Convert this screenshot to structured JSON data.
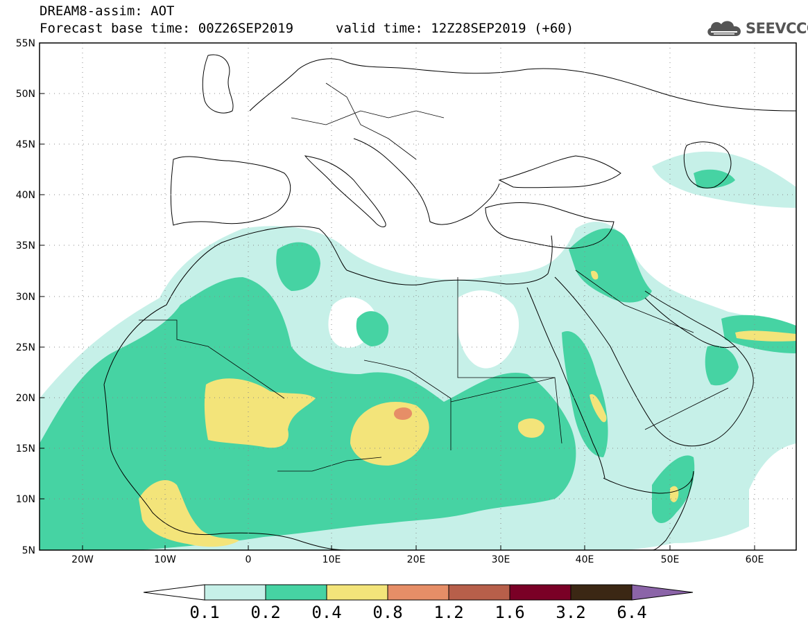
{
  "title": {
    "line1": "DREAM8-assim: AOT",
    "line2": "Forecast base time: 00Z26SEP2019",
    "line3": "valid time: 12Z28SEP2019 (+60)"
  },
  "logo": {
    "text": "SEEVCCC",
    "icon": "cloud-icon"
  },
  "map": {
    "lon_range": [
      -25,
      65
    ],
    "lat_range": [
      5,
      55
    ],
    "lat_ticks": [
      "5N",
      "10N",
      "15N",
      "20N",
      "25N",
      "30N",
      "35N",
      "40N",
      "45N",
      "50N",
      "55N"
    ],
    "lon_ticks": [
      "20W",
      "10W",
      "0",
      "10E",
      "20E",
      "30E",
      "40E",
      "50E",
      "60E"
    ],
    "variable": "AOT"
  },
  "colorbar": {
    "labels": [
      "0.1",
      "0.2",
      "0.4",
      "0.8",
      "1.2",
      "1.6",
      "3.2",
      "6.4"
    ],
    "colors": [
      "#ffffff",
      "#c6f0e8",
      "#46d3a3",
      "#f3e47a",
      "#e68e67",
      "#b75f4a",
      "#7a0026",
      "#3b2714",
      "#8b64a8"
    ]
  }
}
